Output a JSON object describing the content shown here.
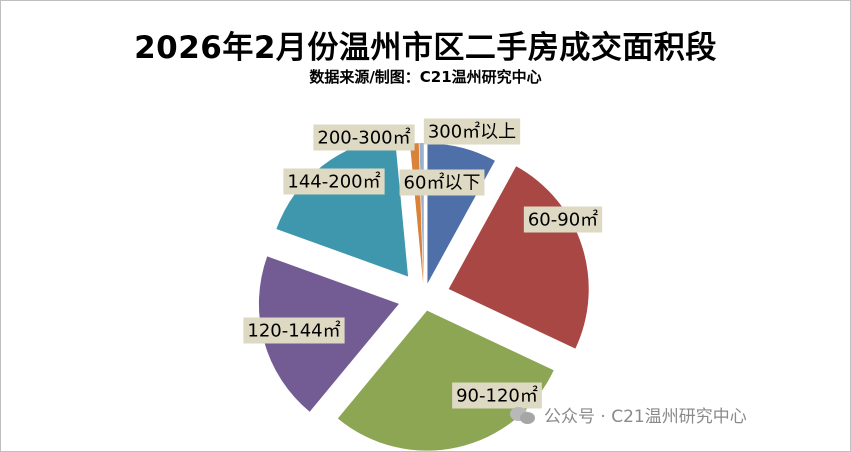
{
  "header": {
    "title": "2026年2月份温州市区二手房成交面积段",
    "subtitle": "数据来源/制图：C21温州研究中心"
  },
  "watermark": {
    "icon": "wechat-icon",
    "text": "公众号 · C21温州研究中心"
  },
  "chart_data": {
    "type": "pie",
    "title": "2026年2月份温州市区二手房成交面积段",
    "subtitle": "数据来源/制图：C21温州研究中心",
    "exploded": true,
    "slices": [
      {
        "label": "60㎡以下",
        "value": 8.0,
        "color": "#4f6fa8"
      },
      {
        "label": "60-90㎡",
        "value": 24.0,
        "color": "#a94744"
      },
      {
        "label": "90-120㎡",
        "value": 29.0,
        "color": "#8ca653"
      },
      {
        "label": "120-144㎡",
        "value": 19.5,
        "color": "#735b94"
      },
      {
        "label": "144-200㎡",
        "value": 18.0,
        "color": "#3f97ad"
      },
      {
        "label": "200-300㎡",
        "value": 1.0,
        "color": "#d9823a"
      },
      {
        "label": "300㎡以上",
        "value": 0.5,
        "color": "#9aafcf"
      }
    ]
  }
}
